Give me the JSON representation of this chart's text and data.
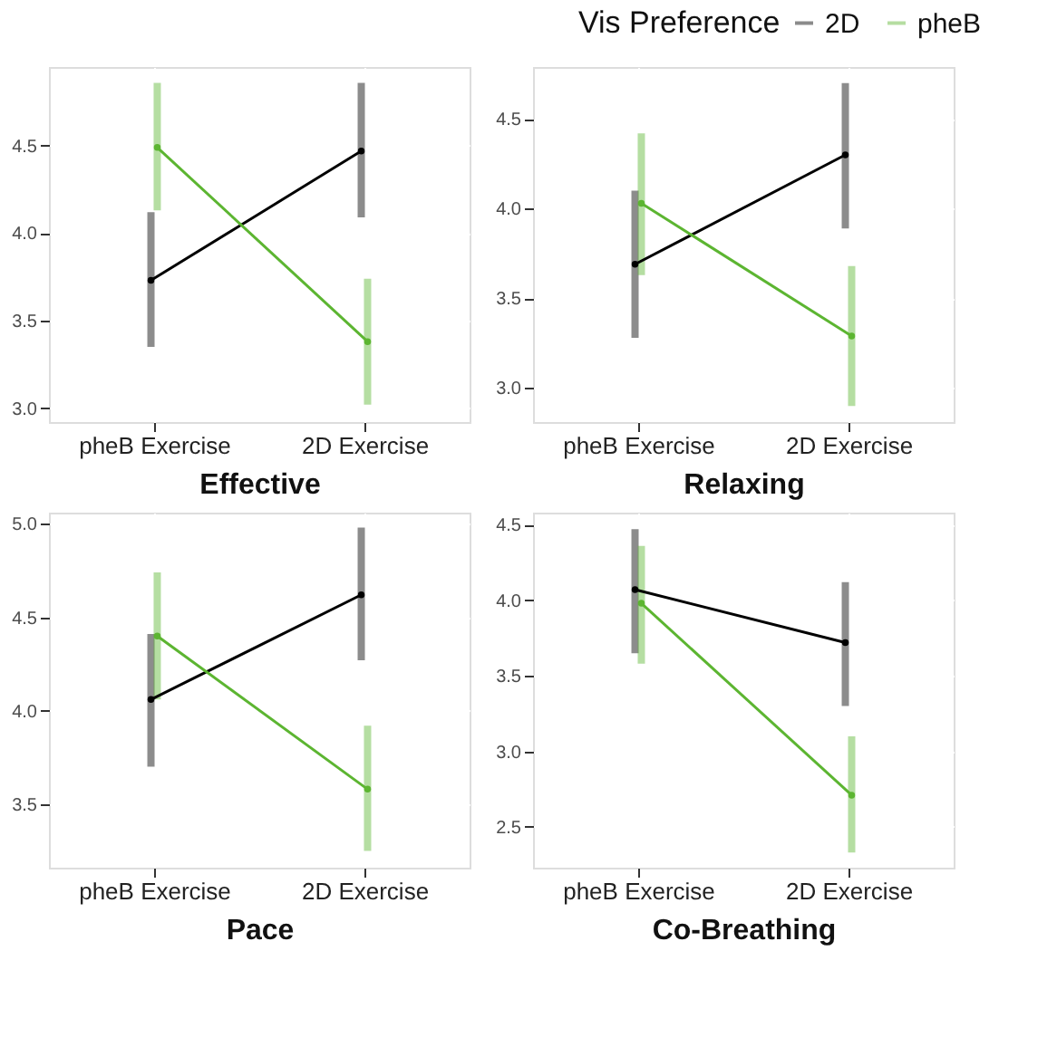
{
  "chart_data": [
    {
      "type": "line",
      "categories": [
        "pheB Exercise",
        "2D Exercise"
      ],
      "xlabel": "Effective",
      "ylim": [
        2.92,
        4.95
      ],
      "legend": "top right",
      "legend_title": "Vis Preference",
      "yticks": [
        {
          "value": 3,
          "label": "3.0"
        },
        {
          "value": 3.5,
          "label": "3.5"
        },
        {
          "value": 4.0,
          "label": "4.0"
        },
        {
          "value": 4.5,
          "label": "4.5"
        }
      ],
      "grid": true,
      "marker": "circle",
      "series": [
        {
          "name": "2D",
          "color": "#000000",
          "values": [
            3.73,
            4.47
          ],
          "errors": [
            [
              3.35,
              4.12
            ],
            [
              4.09,
              4.86
            ]
          ]
        },
        {
          "name": "pheB",
          "color": "#5cb531",
          "values": [
            4.49,
            3.38
          ],
          "errors": [
            [
              4.13,
              4.86
            ],
            [
              3.02,
              3.74
            ]
          ]
        }
      ]
    },
    {
      "type": "line",
      "categories": [
        "pheB Exercise",
        "2D Exercise"
      ],
      "xlabel": "Relaxing",
      "ylim": [
        2.81,
        4.79
      ],
      "yticks": [
        {
          "value": 3.0,
          "label": "3.0"
        },
        3.5,
        {
          "value": 4.0,
          "label": "4.0"
        },
        4.5
      ],
      "grid": true,
      "marker": "circle",
      "series": [
        {
          "name": "2D",
          "color": "#000000",
          "values": [
            3.69,
            4.3
          ],
          "errors": [
            [
              3.28,
              4.1
            ],
            [
              3.89,
              4.7
            ]
          ]
        },
        {
          "name": "pheB",
          "color": "#5cb531",
          "values": [
            4.03,
            3.29
          ],
          "errors": [
            [
              3.63,
              4.42
            ],
            [
              2.9,
              3.68
            ]
          ]
        }
      ]
    },
    {
      "type": "line",
      "categories": [
        "pheB Exercise",
        "2D Exercise"
      ],
      "xlabel": "Pace",
      "ylim": [
        3.16,
        5.06
      ],
      "yticks": [
        3.5,
        {
          "value": 4.0,
          "label": "4.0"
        },
        4.5,
        {
          "value": 5.0,
          "label": "5.0"
        }
      ],
      "grid": true,
      "marker": "circle",
      "series": [
        {
          "name": "2D",
          "color": "#000000",
          "values": [
            4.06,
            4.62
          ],
          "errors": [
            [
              3.7,
              4.41
            ],
            [
              4.27,
              4.98
            ]
          ]
        },
        {
          "name": "pheB",
          "color": "#5cb531",
          "values": [
            4.4,
            3.58
          ],
          "errors": [
            [
              4.06,
              4.74
            ],
            [
              3.25,
              3.92
            ]
          ]
        }
      ]
    },
    {
      "type": "line",
      "categories": [
        "pheB Exercise",
        "2D Exercise"
      ],
      "xlabel": "Co-Breathing",
      "ylim": [
        2.23,
        4.58
      ],
      "yticks": [
        2.5,
        {
          "value": 3.0,
          "label": "3.0"
        },
        3.5,
        {
          "value": 4.0,
          "label": "4.0"
        },
        4.5
      ],
      "grid": true,
      "marker": "circle",
      "series": [
        {
          "name": "2D",
          "color": "#000000",
          "values": [
            4.07,
            3.72
          ],
          "errors": [
            [
              3.65,
              4.47
            ],
            [
              3.3,
              4.12
            ]
          ]
        },
        {
          "name": "pheB",
          "color": "#5cb531",
          "values": [
            3.98,
            2.71
          ],
          "errors": [
            [
              3.58,
              4.36
            ],
            [
              2.33,
              3.1
            ]
          ]
        }
      ]
    }
  ]
}
